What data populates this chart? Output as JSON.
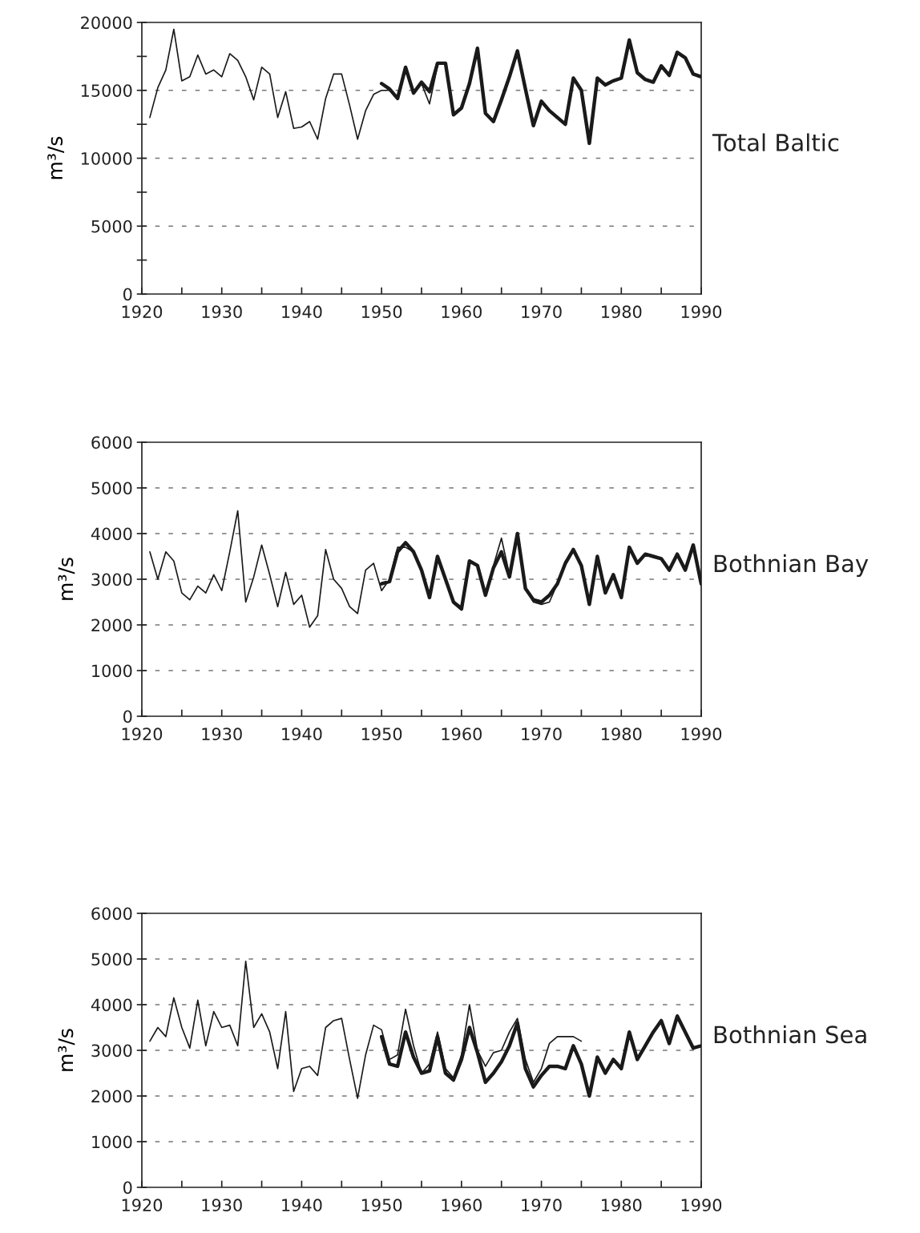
{
  "chart_data": [
    {
      "type": "line",
      "title": "Total Baltic",
      "ylabel": "m³/s",
      "xlim": [
        1920,
        1990
      ],
      "ylim": [
        0,
        20000
      ],
      "grid": "y",
      "legend": false,
      "marker": "none",
      "line_style": "solid",
      "xticks": [
        1920,
        {
          "value": 1925,
          "label": null
        },
        1930,
        {
          "value": 1935,
          "label": null
        },
        1940,
        {
          "value": 1945,
          "label": null
        },
        1950,
        {
          "value": 1955,
          "label": null
        },
        1960,
        {
          "value": 1965,
          "label": null
        },
        1970,
        {
          "value": 1975,
          "label": null
        },
        1980,
        {
          "value": 1985,
          "label": null
        },
        1990
      ],
      "yticks": [
        0,
        {
          "value": 2500,
          "label": null
        },
        5000,
        {
          "value": 7500,
          "label": null
        },
        10000,
        {
          "value": 12500,
          "label": null
        },
        15000,
        {
          "value": 17500,
          "label": null
        },
        20000
      ],
      "series": [
        {
          "color": "#1a1a1a",
          "x": [
            1921,
            1922,
            1923,
            1924,
            1925,
            1926,
            1927,
            1928,
            1929,
            1930,
            1931,
            1932,
            1933,
            1934,
            1935,
            1936,
            1937,
            1938,
            1939,
            1940,
            1941,
            1942,
            1943,
            1944,
            1945,
            1946,
            1947,
            1948,
            1949,
            1950,
            1951,
            1952,
            1953,
            1954,
            1955,
            1956,
            1957
          ],
          "values": [
            13000,
            15200,
            16500,
            19500,
            15700,
            16000,
            17600,
            16200,
            16500,
            16000,
            17700,
            17200,
            16000,
            14300,
            16700,
            16200,
            13000,
            14900,
            12200,
            12300,
            12700,
            11400,
            14400,
            16200,
            16200,
            13900,
            11400,
            13500,
            14700,
            15000,
            15000,
            14400,
            16500,
            14900,
            15500,
            14000,
            16800
          ]
        },
        {
          "color": "#1a1a1a",
          "x": [
            1950,
            1951,
            1952,
            1953,
            1954,
            1955,
            1956,
            1957,
            1958,
            1959,
            1960,
            1961,
            1962,
            1963,
            1964,
            1965,
            1966,
            1967,
            1968,
            1969,
            1970,
            1971,
            1972,
            1973,
            1974,
            1975,
            1976,
            1977,
            1978,
            1979,
            1980,
            1981,
            1982,
            1983,
            1984,
            1985,
            1986,
            1987,
            1988,
            1989,
            1990
          ],
          "values": [
            15500,
            15100,
            14400,
            16700,
            14800,
            15600,
            14900,
            17000,
            17000,
            13200,
            13700,
            15500,
            18100,
            13300,
            12700,
            14300,
            16000,
            17900,
            15100,
            12400,
            14200,
            13500,
            13000,
            12500,
            15900,
            15000,
            11100,
            15900,
            15400,
            15700,
            15900,
            18700,
            16300,
            15800,
            15600,
            16800,
            16100,
            17800,
            17400,
            16200,
            16000
          ]
        }
      ]
    },
    {
      "type": "line",
      "title": "Bothnian Bay",
      "ylabel": "m³/s",
      "xlim": [
        1920,
        1990
      ],
      "ylim": [
        0,
        6000
      ],
      "grid": "y",
      "legend": false,
      "marker": "none",
      "line_style": "solid",
      "xticks": [
        1920,
        {
          "value": 1925,
          "label": null
        },
        1930,
        {
          "value": 1935,
          "label": null
        },
        1940,
        {
          "value": 1945,
          "label": null
        },
        1950,
        {
          "value": 1955,
          "label": null
        },
        1960,
        {
          "value": 1965,
          "label": null
        },
        1970,
        {
          "value": 1975,
          "label": null
        },
        1980,
        {
          "value": 1985,
          "label": null
        },
        1990
      ],
      "yticks": [
        0,
        1000,
        2000,
        3000,
        4000,
        5000,
        6000
      ],
      "series": [
        {
          "color": "#1a1a1a",
          "x": [
            1921,
            1922,
            1923,
            1924,
            1925,
            1926,
            1927,
            1928,
            1929,
            1930,
            1931,
            1932,
            1933,
            1934,
            1935,
            1936,
            1937,
            1938,
            1939,
            1940,
            1941,
            1942,
            1943,
            1944,
            1945,
            1946,
            1947,
            1948,
            1949,
            1950,
            1951,
            1952,
            1953,
            1954,
            1955,
            1956,
            1957,
            1958,
            1959,
            1960,
            1961,
            1962,
            1963,
            1964,
            1965,
            1966,
            1967,
            1968,
            1969,
            1970,
            1971,
            1972,
            1973,
            1974,
            1975
          ],
          "values": [
            3600,
            3000,
            3600,
            3400,
            2700,
            2550,
            2850,
            2700,
            3100,
            2750,
            3600,
            4500,
            2500,
            3050,
            3750,
            3100,
            2400,
            3150,
            2450,
            2650,
            1950,
            2200,
            3650,
            3000,
            2800,
            2400,
            2250,
            3200,
            3350,
            2750,
            3000,
            3700,
            3700,
            3600,
            3200,
            2600,
            3500,
            3000,
            2500,
            2400,
            3400,
            3300,
            2700,
            3300,
            3900,
            3100,
            4000,
            2800,
            2500,
            2450,
            2500,
            2900,
            3400,
            3600,
            3300
          ]
        },
        {
          "color": "#1a1a1a",
          "x": [
            1950,
            1951,
            1952,
            1953,
            1954,
            1955,
            1956,
            1957,
            1958,
            1959,
            1960,
            1961,
            1962,
            1963,
            1964,
            1965,
            1966,
            1967,
            1968,
            1969,
            1970,
            1971,
            1972,
            1973,
            1974,
            1975,
            1976,
            1977,
            1978,
            1979,
            1980,
            1981,
            1982,
            1983,
            1984,
            1985,
            1986,
            1987,
            1988,
            1989,
            1990
          ],
          "values": [
            2900,
            2950,
            3600,
            3800,
            3600,
            3200,
            2600,
            3500,
            3000,
            2500,
            2350,
            3400,
            3300,
            2650,
            3250,
            3600,
            3050,
            4000,
            2800,
            2550,
            2500,
            2650,
            2900,
            3350,
            3650,
            3300,
            2450,
            3500,
            2700,
            3100,
            2600,
            3700,
            3350,
            3550,
            3500,
            3450,
            3200,
            3550,
            3200,
            3750,
            2900
          ]
        }
      ]
    },
    {
      "type": "line",
      "title": "Bothnian Sea",
      "ylabel": "m³/s",
      "xlim": [
        1920,
        1990
      ],
      "ylim": [
        0,
        6000
      ],
      "grid": "y",
      "legend": false,
      "marker": "none",
      "line_style": "solid",
      "xticks": [
        1920,
        {
          "value": 1925,
          "label": null
        },
        1930,
        {
          "value": 1935,
          "label": null
        },
        1940,
        {
          "value": 1945,
          "label": null
        },
        1950,
        {
          "value": 1955,
          "label": null
        },
        1960,
        {
          "value": 1965,
          "label": null
        },
        1970,
        {
          "value": 1975,
          "label": null
        },
        1980,
        {
          "value": 1985,
          "label": null
        },
        1990
      ],
      "yticks": [
        0,
        1000,
        2000,
        3000,
        4000,
        5000,
        6000
      ],
      "series": [
        {
          "color": "#1a1a1a",
          "x": [
            1921,
            1922,
            1923,
            1924,
            1925,
            1926,
            1927,
            1928,
            1929,
            1930,
            1931,
            1932,
            1933,
            1934,
            1935,
            1936,
            1937,
            1938,
            1939,
            1940,
            1941,
            1942,
            1943,
            1944,
            1945,
            1946,
            1947,
            1948,
            1949,
            1950,
            1951,
            1952,
            1953,
            1954,
            1955,
            1956,
            1957,
            1958,
            1959,
            1960,
            1961,
            1962,
            1963,
            1964,
            1965,
            1966,
            1967,
            1968,
            1969,
            1970,
            1971,
            1972,
            1973,
            1974,
            1975
          ],
          "values": [
            3200,
            3500,
            3300,
            4150,
            3500,
            3050,
            4100,
            3100,
            3850,
            3500,
            3550,
            3100,
            4950,
            3500,
            3800,
            3400,
            2600,
            3850,
            2100,
            2600,
            2650,
            2450,
            3500,
            3650,
            3700,
            2800,
            1950,
            2900,
            3550,
            3450,
            2800,
            2900,
            3900,
            3100,
            2500,
            2700,
            3400,
            2600,
            2400,
            2900,
            4000,
            3000,
            2650,
            2950,
            3000,
            3400,
            3700,
            2800,
            2300,
            2600,
            3150,
            3300,
            3300,
            3300,
            3200
          ]
        },
        {
          "color": "#1a1a1a",
          "x": [
            1950,
            1951,
            1952,
            1953,
            1954,
            1955,
            1956,
            1957,
            1958,
            1959,
            1960,
            1961,
            1962,
            1963,
            1964,
            1965,
            1966,
            1967,
            1968,
            1969,
            1970,
            1971,
            1972,
            1973,
            1974,
            1975,
            1976,
            1977,
            1978,
            1979,
            1980,
            1981,
            1982,
            1983,
            1984,
            1985,
            1986,
            1987,
            1988,
            1989,
            1990
          ],
          "values": [
            3300,
            2700,
            2650,
            3400,
            2850,
            2500,
            2550,
            3300,
            2500,
            2350,
            2800,
            3500,
            2950,
            2300,
            2500,
            2750,
            3100,
            3600,
            2600,
            2200,
            2450,
            2650,
            2650,
            2600,
            3100,
            2700,
            2000,
            2850,
            2500,
            2800,
            2600,
            3400,
            2800,
            3100,
            3400,
            3650,
            3150,
            3750,
            3400,
            3050,
            3100
          ]
        }
      ]
    }
  ]
}
